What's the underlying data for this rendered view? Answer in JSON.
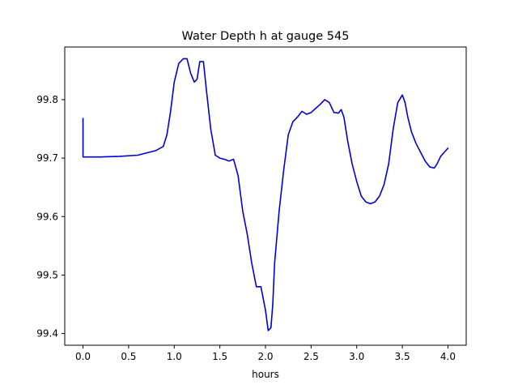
{
  "chart_data": {
    "type": "line",
    "title": "Water Depth h at gauge 545",
    "xlabel": "hours",
    "ylabel": "",
    "xlim": [
      -0.2,
      4.2
    ],
    "ylim": [
      99.38,
      99.89
    ],
    "grid": false,
    "x_ticks": [
      0.0,
      0.5,
      1.0,
      1.5,
      2.0,
      2.5,
      3.0,
      3.5,
      4.0
    ],
    "x_tick_labels": [
      "0.0",
      "0.5",
      "1.0",
      "1.5",
      "2.0",
      "2.5",
      "3.0",
      "3.5",
      "4.0"
    ],
    "y_ticks": [
      99.4,
      99.5,
      99.6,
      99.7,
      99.8
    ],
    "y_tick_labels": [
      "99.4",
      "99.5",
      "99.6",
      "99.7",
      "99.8"
    ],
    "series": [
      {
        "color": "#0000dd",
        "x": [
          0.0,
          0.0,
          0.02,
          0.2,
          0.4,
          0.6,
          0.7,
          0.8,
          0.88,
          0.92,
          0.96,
          1.0,
          1.05,
          1.1,
          1.14,
          1.18,
          1.22,
          1.25,
          1.28,
          1.32,
          1.35,
          1.4,
          1.45,
          1.5,
          1.55,
          1.6,
          1.65,
          1.7,
          1.75,
          1.8,
          1.85,
          1.9,
          1.95,
          2.0,
          2.03,
          2.06,
          2.08,
          2.1,
          2.15,
          2.2,
          2.25,
          2.3,
          2.35,
          2.4,
          2.45,
          2.5,
          2.55,
          2.6,
          2.65,
          2.7,
          2.75,
          2.8,
          2.83,
          2.86,
          2.9,
          2.95,
          3.0,
          3.05,
          3.1,
          3.15,
          3.2,
          3.25,
          3.3,
          3.35,
          3.4,
          3.45,
          3.5,
          3.53,
          3.56,
          3.6,
          3.65,
          3.7,
          3.75,
          3.8,
          3.85,
          3.88,
          3.92,
          3.96,
          4.0
        ],
        "values": [
          99.768,
          99.702,
          99.702,
          99.702,
          99.703,
          99.705,
          99.709,
          99.713,
          99.72,
          99.74,
          99.78,
          99.83,
          99.862,
          99.87,
          99.87,
          99.845,
          99.83,
          99.835,
          99.865,
          99.865,
          99.82,
          99.75,
          99.705,
          99.7,
          99.698,
          99.695,
          99.698,
          99.67,
          99.61,
          99.57,
          99.52,
          99.48,
          99.48,
          99.44,
          99.405,
          99.41,
          99.45,
          99.52,
          99.61,
          99.68,
          99.74,
          99.762,
          99.77,
          99.78,
          99.775,
          99.778,
          99.785,
          99.792,
          99.8,
          99.795,
          99.778,
          99.777,
          99.783,
          99.77,
          99.73,
          99.69,
          99.66,
          99.635,
          99.625,
          99.622,
          99.625,
          99.635,
          99.655,
          99.69,
          99.75,
          99.795,
          99.808,
          99.795,
          99.77,
          99.745,
          99.725,
          99.71,
          99.695,
          99.685,
          99.683,
          99.69,
          99.703,
          99.71,
          99.717
        ]
      }
    ]
  }
}
